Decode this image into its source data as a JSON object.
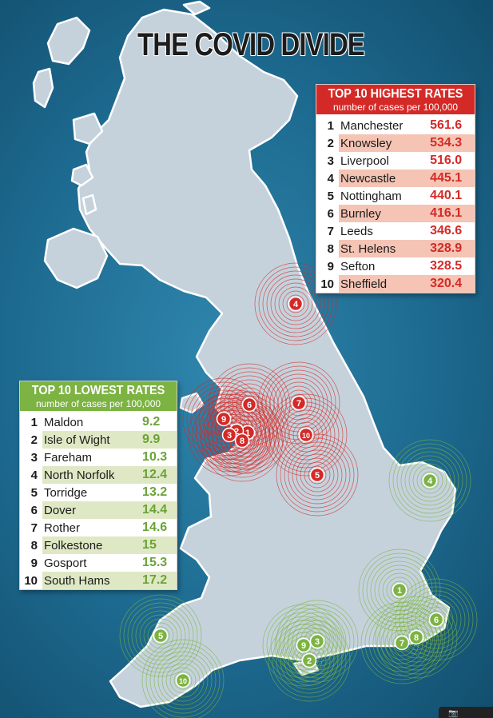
{
  "title": "THE COVID DIVIDE",
  "colors": {
    "sea": "#1d6a90",
    "land": "#c5d2dc",
    "high": "#d42a27",
    "low": "#7cb342"
  },
  "highest": {
    "heading": "TOP 10 HIGHEST RATES",
    "subheading": "number of cases per 100,000",
    "rows": [
      {
        "rank": "1",
        "name": "Manchester",
        "value": "561.6"
      },
      {
        "rank": "2",
        "name": "Knowsley",
        "value": "534.3"
      },
      {
        "rank": "3",
        "name": "Liverpool",
        "value": "516.0"
      },
      {
        "rank": "4",
        "name": "Newcastle",
        "value": "445.1"
      },
      {
        "rank": "5",
        "name": "Nottingham",
        "value": "440.1"
      },
      {
        "rank": "6",
        "name": "Burnley",
        "value": "416.1"
      },
      {
        "rank": "7",
        "name": "Leeds",
        "value": "346.6"
      },
      {
        "rank": "8",
        "name": "St. Helens",
        "value": "328.9"
      },
      {
        "rank": "9",
        "name": "Sefton",
        "value": "328.5"
      },
      {
        "rank": "10",
        "name": "Sheffield",
        "value": "320.4"
      }
    ]
  },
  "lowest": {
    "heading": "TOP 10 LOWEST RATES",
    "subheading": "number of cases per 100,000",
    "rows": [
      {
        "rank": "1",
        "name": "Maldon",
        "value": "9.2"
      },
      {
        "rank": "2",
        "name": "Isle of Wight",
        "value": "9.9"
      },
      {
        "rank": "3",
        "name": "Fareham",
        "value": "10.3"
      },
      {
        "rank": "4",
        "name": "North Norfolk",
        "value": "12.4"
      },
      {
        "rank": "5",
        "name": "Torridge",
        "value": "13.2"
      },
      {
        "rank": "6",
        "name": "Dover",
        "value": "14.4"
      },
      {
        "rank": "7",
        "name": "Rother",
        "value": "14.6"
      },
      {
        "rank": "8",
        "name": "Folkestone",
        "value": "15"
      },
      {
        "rank": "9",
        "name": "Gosport",
        "value": "15.3"
      },
      {
        "rank": "10",
        "name": "South Hams",
        "value": "17.2"
      }
    ]
  },
  "map_markers": {
    "high": [
      "1",
      "2",
      "3",
      "4",
      "5",
      "6",
      "7",
      "8",
      "9",
      "10"
    ],
    "low": [
      "1",
      "2",
      "3",
      "4",
      "5",
      "6",
      "7",
      "8",
      "9",
      "10"
    ]
  },
  "icons": [
    "camera-icon"
  ]
}
